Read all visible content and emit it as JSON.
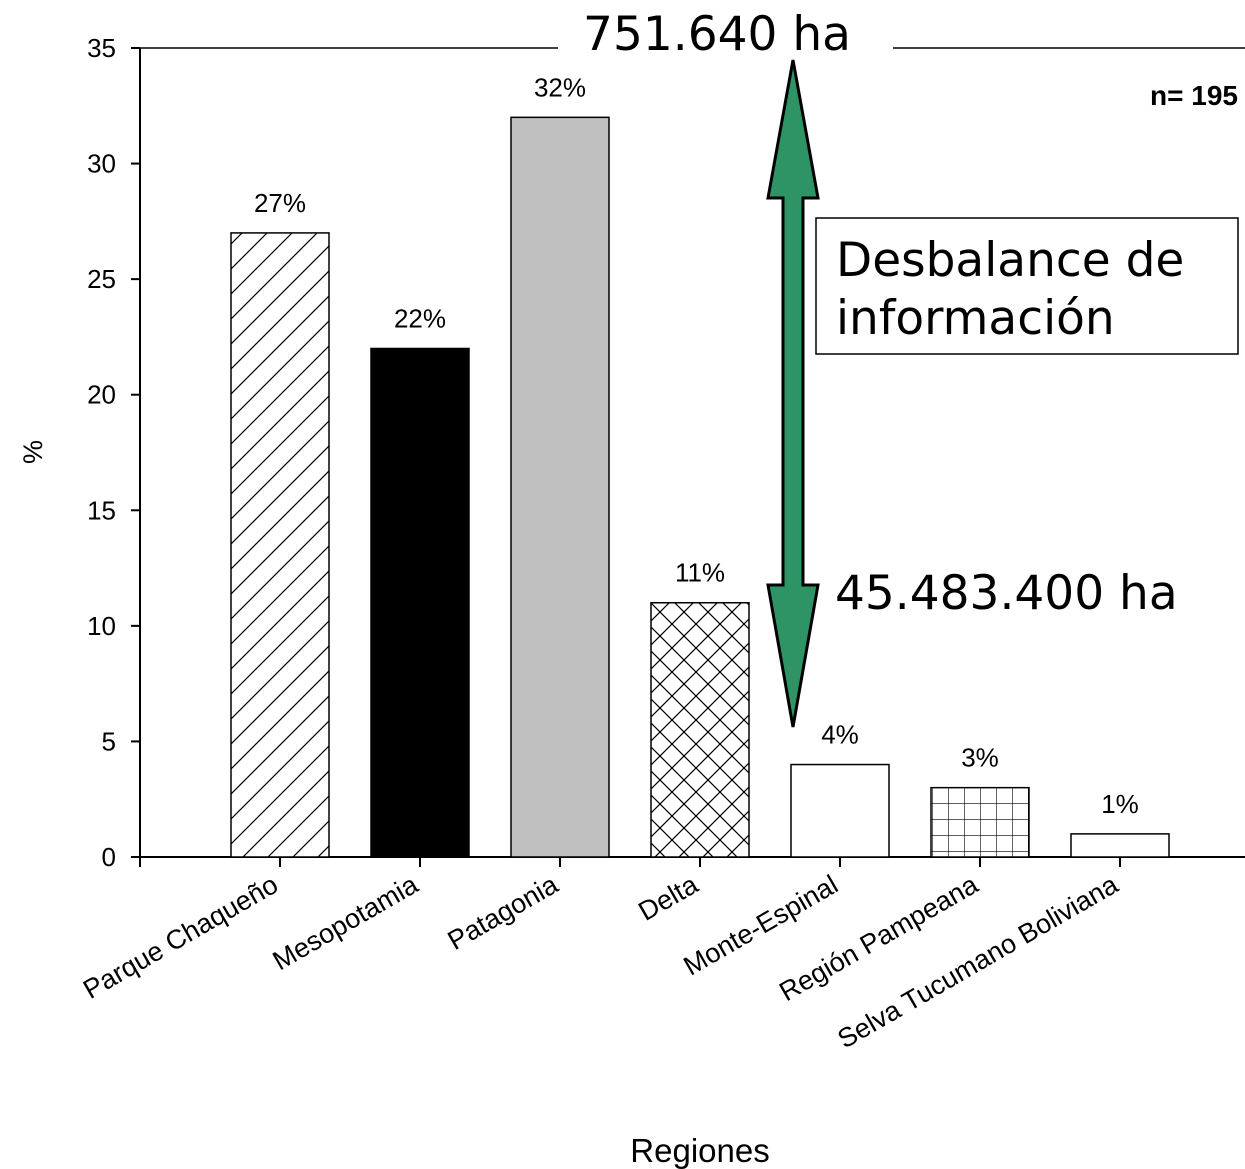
{
  "chart_data": {
    "type": "bar",
    "xlabel": "Regiones",
    "ylabel": "%",
    "ylim": [
      0,
      35
    ],
    "yticks": [
      0,
      5,
      10,
      15,
      20,
      25,
      30,
      35
    ],
    "grid": false,
    "categories": [
      "Parque Chaqueño",
      "Mesopotamia",
      "Patagonia",
      "Delta",
      "Monte-Espinal",
      "Región Pampeana",
      "Selva Tucumano Boliviana"
    ],
    "values": [
      27,
      22,
      32,
      11,
      4,
      3,
      1
    ],
    "data_labels": [
      "27%",
      "22%",
      "32%",
      "11%",
      "4%",
      "3%",
      "1%"
    ],
    "bar_patterns": [
      "diagonal-hatch",
      "solid-black",
      "solid-gray",
      "crosshatch",
      "white",
      "grid",
      "white"
    ],
    "n_label": "n= 195",
    "annotations": {
      "top_value": "751.640 ha",
      "bottom_value": "45.483.400 ha",
      "box_line1": "Desbalance de",
      "box_line2": "información",
      "arrow_color": "#2e9466"
    }
  }
}
